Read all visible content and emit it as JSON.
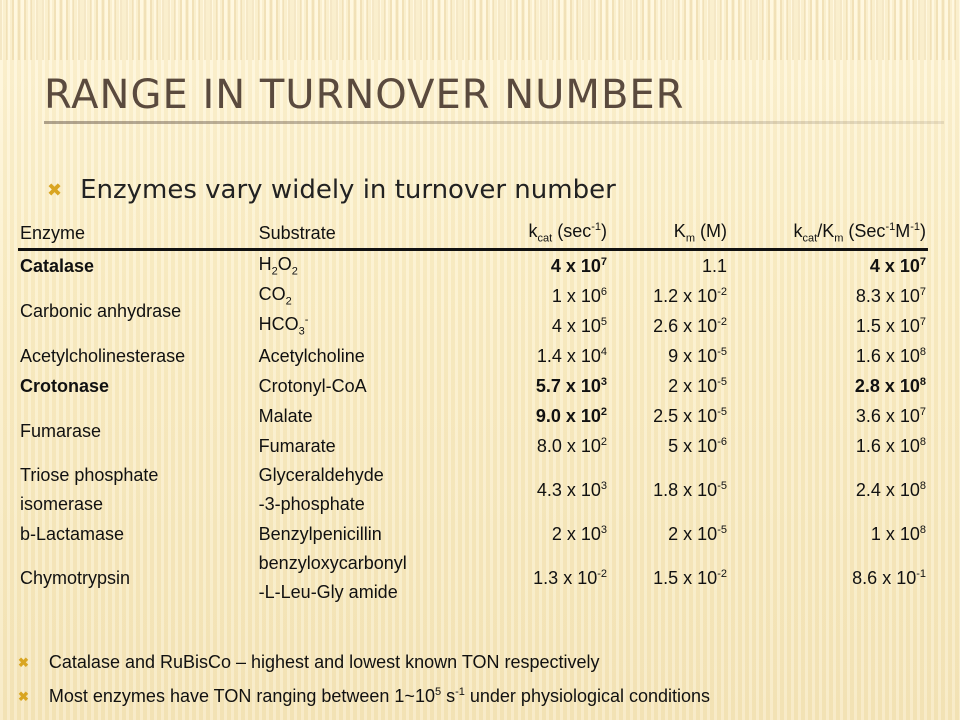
{
  "title": "RANGE IN TURNOVER NUMBER",
  "bullet": "Enzymes vary widely in turnover number",
  "table": {
    "headers": [
      "Enzyme",
      "Substrate",
      "k",
      "cat",
      " (sec",
      "-1",
      ")",
      "K",
      "m",
      " (M)",
      "k",
      "cat",
      "/K",
      "m",
      " (Sec",
      "-1",
      "M",
      "-1",
      ")"
    ],
    "rows": [
      {
        "enzyme": "Catalase",
        "substrate": "H",
        "s_sub1": "2",
        "s_mid": "O",
        "s_sub2": "2",
        "kcat": "4 x 10",
        "kcat_e": "7",
        "km": "1.1",
        "km_e": "",
        "ratio": "4 x 10",
        "ratio_e": "7"
      },
      {
        "enzyme": "Carbonic anhydrase",
        "substrate": "CO",
        "s_sub1": "2",
        "kcat": "1 x 10",
        "kcat_e": "6",
        "km": "1.2 x 10",
        "km_e": "-2",
        "ratio": "8.3 x 10",
        "ratio_e": "7"
      },
      {
        "substrate": "HCO",
        "s_sub1": "3",
        "s_sup": "-",
        "kcat": "4 x 10",
        "kcat_e": "5",
        "km": "2.6 x 10",
        "km_e": "-2",
        "ratio": "1.5 x 10",
        "ratio_e": "7"
      },
      {
        "enzyme": "Acetylcholinesterase",
        "substrate": "Acetylcholine",
        "kcat": "1.4 x 10",
        "kcat_e": "4",
        "km": "9 x 10",
        "km_e": "-5",
        "ratio": "1.6 x 10",
        "ratio_e": "8"
      },
      {
        "enzyme": "Crotonase",
        "substrate": "Crotonyl-CoA",
        "kcat": "5.7 x 10",
        "kcat_e": "3",
        "km": "2 x 10",
        "km_e": "-5",
        "ratio": "2.8 x 10",
        "ratio_e": "8"
      },
      {
        "enzyme": "Fumarase",
        "substrate": "Malate",
        "kcat": "9.0 x 10",
        "kcat_e": "2",
        "km": "2.5 x 10",
        "km_e": "-5",
        "ratio": "3.6 x 10",
        "ratio_e": "7"
      },
      {
        "substrate": "Fumarate",
        "kcat": "8.0 x 10",
        "kcat_e": "2",
        "km": "5 x 10",
        "km_e": "-6",
        "ratio": "1.6 x 10",
        "ratio_e": "8"
      },
      {
        "enzyme_l1": "Triose phosphate",
        "enzyme_l2": "isomerase",
        "substrate_l1": "Glyceraldehyde",
        "substrate_l2": "-3-phosphate",
        "kcat": "4.3 x 10",
        "kcat_e": "3",
        "km": "1.8 x 10",
        "km_e": "-5",
        "ratio": "2.4 x 10",
        "ratio_e": "8"
      },
      {
        "enzyme": "b-Lactamase",
        "substrate": "Benzylpenicillin",
        "kcat": "2 x 10",
        "kcat_e": "3",
        "km": "2 x 10",
        "km_e": "-5",
        "ratio": "1 x 10",
        "ratio_e": "8"
      },
      {
        "enzyme": "Chymotrypsin",
        "substrate_l1": "benzyloxycarbonyl",
        "substrate_l2": "-L-Leu-Gly amide",
        "kcat": "1.3 x 10",
        "kcat_e": "-2",
        "km": "1.5 x 10",
        "km_e": "-2",
        "ratio": "8.6 x 10",
        "ratio_e": "-1"
      }
    ]
  },
  "notes": {
    "note1": "Catalase and RuBisCo – highest and lowest known TON respectively",
    "note2_a": "Most enzymes have TON ranging between 1~10",
    "note2_exp": "5",
    "note2_b": " s",
    "note2_exp2": "-1",
    "note2_c": " under physiological conditions"
  },
  "colors": {
    "accent": "#d9a521",
    "title": "#5a4a3e"
  },
  "icons": {
    "bullet": "x-bullet-icon"
  }
}
